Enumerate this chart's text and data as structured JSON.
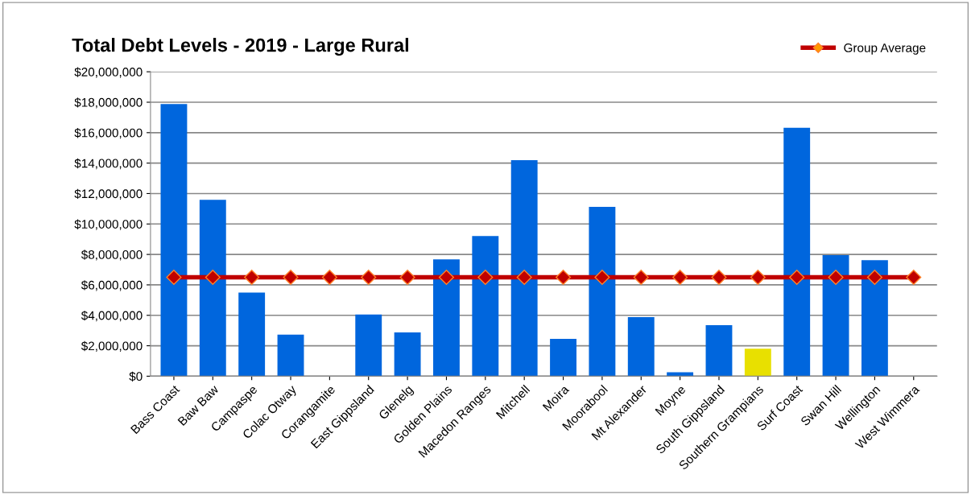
{
  "chart_data": {
    "type": "bar",
    "title": "Total Debt Levels - 2019 - Large Rural",
    "categories": [
      "Bass Coast",
      "Baw Baw",
      "Campaspe",
      "Colac Otway",
      "Corangamite",
      "East Gippsland",
      "Glenelg",
      "Golden Plains",
      "Macedon Ranges",
      "Mitchell",
      "Moira",
      "Moorabool",
      "Mt Alexander",
      "Moyne",
      "South Gippsland",
      "Southern Grampians",
      "Surf Coast",
      "Swan Hill",
      "Wellington",
      "West Wimmera"
    ],
    "series": [
      {
        "colors": [
          "#0066dd",
          "#0066dd",
          "#0066dd",
          "#0066dd",
          "#0066dd",
          "#0066dd",
          "#0066dd",
          "#0066dd",
          "#0066dd",
          "#0066dd",
          "#0066dd",
          "#0066dd",
          "#0066dd",
          "#0066dd",
          "#0066dd",
          "#e8e000",
          "#0066dd",
          "#0066dd",
          "#0066dd",
          "#0066dd"
        ],
        "values": [
          17880000,
          11590000,
          5490000,
          2730000,
          0,
          4050000,
          2880000,
          7680000,
          9210000,
          14190000,
          2460000,
          11120000,
          3880000,
          260000,
          3350000,
          1810000,
          16320000,
          7950000,
          7620000,
          0
        ]
      },
      {
        "type": "line",
        "name": "Group Average",
        "color": "#c00000",
        "marker": "diamond",
        "values": [
          6500000,
          6500000,
          6500000,
          6500000,
          6500000,
          6500000,
          6500000,
          6500000,
          6500000,
          6500000,
          6500000,
          6500000,
          6500000,
          6500000,
          6500000,
          6500000,
          6500000,
          6500000,
          6500000,
          6500000
        ]
      }
    ],
    "ylim": [
      0,
      20000000
    ],
    "yticks": [
      {
        "value": 0,
        "label": "$0"
      },
      {
        "value": 2000000,
        "label": "$2,000,000"
      },
      {
        "value": 4000000,
        "label": "$4,000,000"
      },
      {
        "value": 6000000,
        "label": "$6,000,000"
      },
      {
        "value": 8000000,
        "label": "$8,000,000"
      },
      {
        "value": 10000000,
        "label": "$10,000,000"
      },
      {
        "value": 12000000,
        "label": "$12,000,000"
      },
      {
        "value": 14000000,
        "label": "$14,000,000"
      },
      {
        "value": 16000000,
        "label": "$16,000,000"
      },
      {
        "value": 18000000,
        "label": "$18,000,000"
      },
      {
        "value": 20000000,
        "label": "$20,000,000"
      }
    ],
    "grid": "y",
    "legend": "top right"
  }
}
